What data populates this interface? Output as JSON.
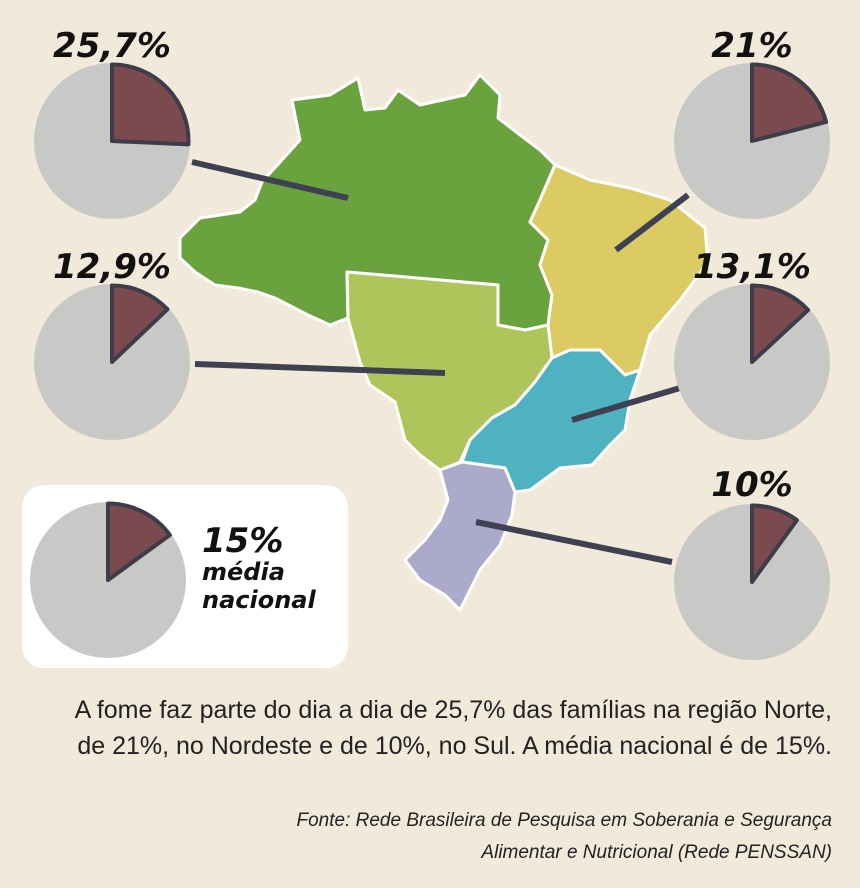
{
  "chart_data": {
    "type": "pie",
    "unit": "%",
    "regions": [
      {
        "name": "Norte",
        "value": 25.7,
        "label": "25,7%"
      },
      {
        "name": "Nordeste",
        "value": 21,
        "label": "21%"
      },
      {
        "name": "Centro-Oeste",
        "value": 12.9,
        "label": "12,9%"
      },
      {
        "name": "Sudeste",
        "value": 13.1,
        "label": "13,1%"
      },
      {
        "name": "Sul",
        "value": 10,
        "label": "10%"
      }
    ],
    "national": {
      "value": 15,
      "label": "15%",
      "line1": "média",
      "line2": "nacional"
    }
  },
  "colors": {
    "background": "#f1eadb",
    "pie_rest": "#c8c8c6",
    "pie_slice": "#7a4a4e",
    "slice_outline": "#3c3c4a",
    "connector": "#3e4152",
    "region_norte": "#6aa33e",
    "region_nordeste": "#dccb62",
    "region_centro_oeste": "#afc55b",
    "region_sudeste": "#4fb2c0",
    "region_sul": "#acaaca"
  },
  "caption": {
    "line1": "A fome faz parte do dia a dia de 25,7% das famílias na região Norte,",
    "line2": "de 21%, no Nordeste e de 10%, no Sul. A média nacional é de 15%."
  },
  "source": {
    "line1": "Fonte: Rede Brasileira de Pesquisa em Soberania e Segurança",
    "line2": "Alimentar e Nutricional (Rede PENSSAN)"
  }
}
